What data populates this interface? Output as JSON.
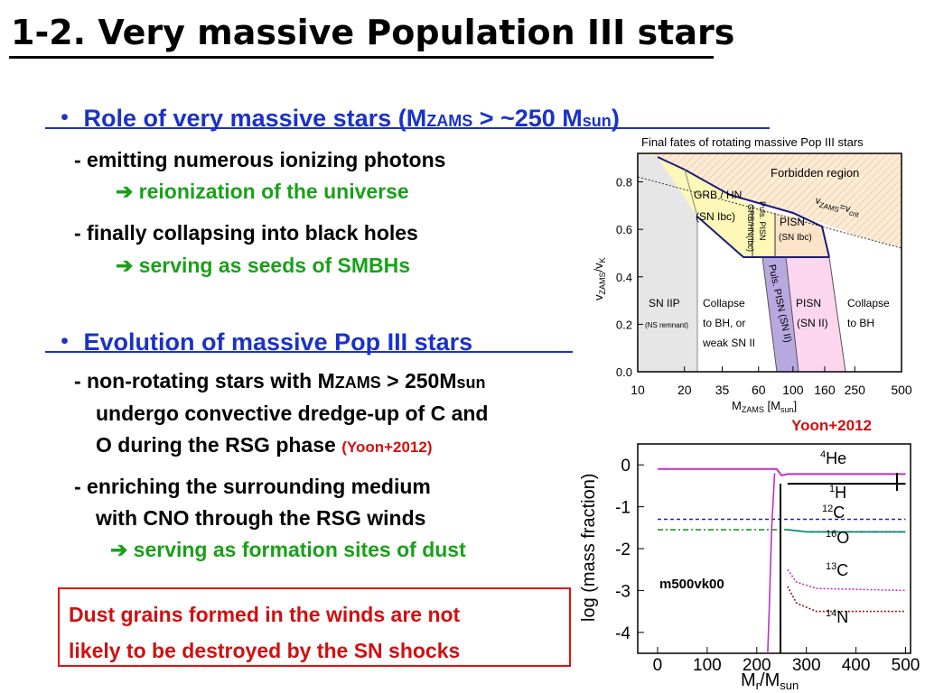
{
  "title": "1-2. Very massive Population III stars",
  "section1": {
    "bullet": "・",
    "heading_a": "Role of very massive stars (M",
    "heading_sub": "ZAMS",
    "heading_b": " > ~250 M",
    "heading_sub2": "sun",
    "heading_c": ")",
    "items": [
      {
        "text": "-  emitting numerous ionizing photons",
        "result": "➔ reionization of the universe"
      },
      {
        "text": "-  finally collapsing into black holes",
        "result": "➔ serving as seeds of SMBHs"
      }
    ]
  },
  "section2": {
    "bullet": "・",
    "heading": "Evolution of massive Pop III stars",
    "item1_line1_a": "-  non-rotating stars with M",
    "item1_line1_sub": "ZAMS",
    "item1_line1_b": " > 250M",
    "item1_line1_sub2": "sun",
    "item1_line2": "undergo convective dredge-up of C and",
    "item1_line3": "O during the RSG phase ",
    "item1_cite": "(Yoon+2012)",
    "item2_line1": "-  enriching the surrounding medium",
    "item2_line2": "with CNO through the RSG winds",
    "item2_result": "➔ serving as formation sites of dust"
  },
  "dust_box": {
    "line1": "Dust grains formed in the winds are not",
    "line2": "likely to be destroyed by the SN shocks"
  },
  "chart_data": [
    {
      "type": "area",
      "title": "Final fates of rotating massive Pop III stars",
      "xlabel_main": "M",
      "xlabel_sub": "ZAMS",
      "xlabel_unit": " [M",
      "xlabel_unit_sub": "sun",
      "xlabel_close": "]",
      "ylabel_main": "v",
      "ylabel_sub": "ZAMS",
      "ylabel_slash": "/v",
      "ylabel_sub2": "K",
      "x_ticks": [
        "10",
        "20",
        "35",
        "60",
        "100",
        "160",
        "250",
        "500"
      ],
      "y_ticks": [
        "0.0",
        "0.2",
        "0.4",
        "0.6",
        "0.8"
      ],
      "xlim": [
        10,
        500
      ],
      "ylim": [
        0,
        0.92
      ],
      "x_scale": "log",
      "regions": [
        {
          "label": "Forbidden region",
          "color": "#fbe3c8"
        },
        {
          "label": "GRB / HN",
          "label2": "(SN Ibc)",
          "color": "#fdf8b8"
        },
        {
          "label": "Puls. PISN",
          "label2": "GRB/HN(Ibc)",
          "color": "#fdf8b8"
        },
        {
          "label": "PISN",
          "label2": "(SN Ibc)",
          "color": "#fbe3c8"
        },
        {
          "label": "Puls. PISN (SN II)",
          "color": "#b8a8e0"
        },
        {
          "label": "SN IIP",
          "label2": "(NS remnant)",
          "color": "#e6e6e6"
        },
        {
          "label": "Collapse",
          "label2": "to BH, or",
          "label3": "weak SN II",
          "color": "#ffffff"
        },
        {
          "label": "PISN",
          "label2": "(SN II)",
          "color": "#fbd6ee"
        },
        {
          "label": "Collapse",
          "label2": "to BH",
          "color": "#ffffff"
        }
      ],
      "critical_line_label": "v",
      "critical_line_sub": "ZAMS",
      "critical_line_eq": "=v",
      "critical_line_sub2": "crit",
      "citation": "Yoon+2012"
    },
    {
      "type": "line",
      "model": "m500vk00",
      "xlabel_main": "M",
      "xlabel_sub": "r",
      "xlabel_slash": "/M",
      "xlabel_sub2": "sun",
      "ylabel": "log (mass fraction)",
      "x_ticks": [
        "0",
        "100",
        "200",
        "300",
        "400",
        "500"
      ],
      "y_ticks": [
        "0",
        "-1",
        "-2",
        "-3",
        "-4"
      ],
      "xlim": [
        -40,
        510
      ],
      "ylim": [
        -4.5,
        0.5
      ],
      "series": [
        {
          "name": "He",
          "sup": "4",
          "color": "#c030c0",
          "x": [
            0,
            240,
            250,
            262,
            270,
            500
          ],
          "y": [
            -0.1,
            -0.1,
            -0.25,
            -0.22,
            -0.22,
            -0.22
          ]
        },
        {
          "name": "H",
          "sup": "1",
          "color": "#000000",
          "x": [
            262,
            500
          ],
          "y": [
            -0.45,
            -0.45
          ]
        },
        {
          "name": "C",
          "sup": "12",
          "color": "#1a9a1a",
          "x": [
            0,
            262,
            300,
            500
          ],
          "y": [
            -1.55,
            -1.55,
            -1.6,
            -1.6
          ]
        },
        {
          "name": "O",
          "sup": "16",
          "color": "#008080",
          "x": [
            262,
            300,
            500
          ],
          "y": [
            -1.55,
            -1.6,
            -1.6
          ]
        },
        {
          "name": "C",
          "sup": "13",
          "color": "#c030c0",
          "x": [
            262,
            280,
            320,
            500
          ],
          "y": [
            -2.5,
            -2.8,
            -2.95,
            -3.0
          ]
        },
        {
          "name": "N",
          "sup": "14",
          "color": "#8a1a1a",
          "x": [
            262,
            280,
            320,
            500
          ],
          "y": [
            -2.9,
            -3.3,
            -3.5,
            -3.5
          ]
        },
        {
          "name": "",
          "sup": "",
          "color": "#2020c0",
          "x": [
            0,
            240,
            500
          ],
          "y": [
            -1.3,
            -1.3,
            -1.3
          ]
        }
      ]
    }
  ]
}
